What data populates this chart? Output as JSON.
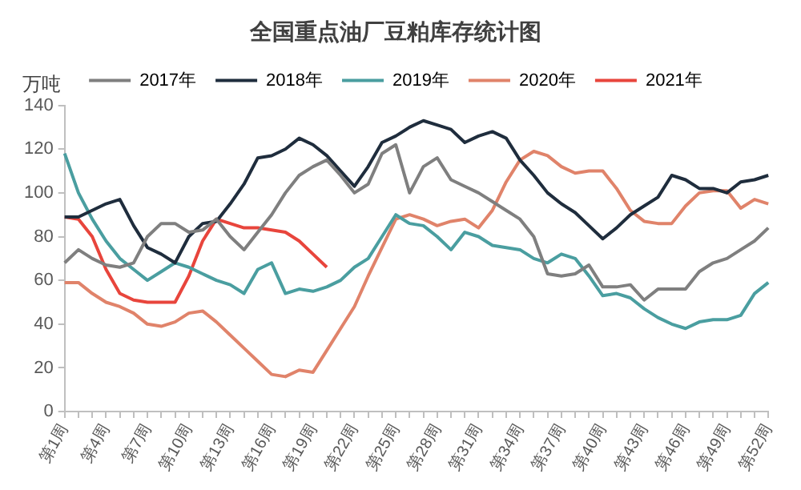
{
  "chart_data": {
    "type": "line",
    "title": "全国重点油厂豆粕库存统计图",
    "ylabel": "万吨",
    "categories": [
      "第1周",
      null,
      null,
      "第4周",
      null,
      null,
      "第7周",
      null,
      null,
      "第10周",
      null,
      null,
      "第13周",
      null,
      null,
      "第16周",
      null,
      null,
      "第19周",
      null,
      null,
      "第22周",
      null,
      null,
      "第25周",
      null,
      null,
      "第28周",
      null,
      null,
      "第31周",
      null,
      null,
      "第34周",
      null,
      null,
      "第37周",
      null,
      null,
      "第40周",
      null,
      null,
      "第43周",
      null,
      null,
      "第46周",
      null,
      null,
      "第49周",
      null,
      null,
      "第52周"
    ],
    "series": [
      {
        "name": "2017年",
        "color": "#7f7f7f",
        "values": [
          68,
          74,
          70,
          67,
          66,
          68,
          80,
          86,
          86,
          82,
          83,
          88,
          80,
          74,
          82,
          90,
          100,
          108,
          112,
          115,
          108,
          100,
          104,
          118,
          122,
          100,
          112,
          116,
          106,
          103,
          100,
          96,
          92,
          88,
          80,
          63,
          62,
          63,
          67,
          57,
          57,
          58,
          51,
          56,
          56,
          56,
          64,
          68,
          70,
          74,
          78,
          84
        ]
      },
      {
        "name": "2018年",
        "color": "#1f2d3d",
        "values": [
          89,
          89,
          92,
          95,
          97,
          85,
          75,
          72,
          68,
          80,
          86,
          87,
          95,
          104,
          116,
          117,
          120,
          125,
          122,
          117,
          110,
          103,
          112,
          123,
          126,
          130,
          133,
          131,
          129,
          123,
          126,
          128,
          125,
          115,
          108,
          100,
          95,
          91,
          85,
          79,
          84,
          90,
          94,
          98,
          108,
          106,
          102,
          102,
          100,
          105,
          106,
          108
        ]
      },
      {
        "name": "2019年",
        "color": "#4a9ea0",
        "values": [
          118,
          100,
          88,
          78,
          70,
          65,
          60,
          64,
          68,
          66,
          63,
          60,
          58,
          54,
          65,
          68,
          54,
          56,
          55,
          57,
          60,
          66,
          70,
          80,
          90,
          86,
          85,
          80,
          74,
          82,
          80,
          76,
          75,
          74,
          70,
          68,
          72,
          70,
          62,
          53,
          54,
          52,
          47,
          43,
          40,
          38,
          41,
          42,
          42,
          44,
          54,
          59
        ]
      },
      {
        "name": "2020年",
        "color": "#e0836a",
        "values": [
          59,
          59,
          54,
          50,
          48,
          45,
          40,
          39,
          41,
          45,
          46,
          41,
          35,
          29,
          23,
          17,
          16,
          19,
          18,
          28,
          38,
          48,
          62,
          75,
          88,
          90,
          88,
          85,
          87,
          88,
          84,
          92,
          105,
          115,
          119,
          117,
          112,
          109,
          110,
          110,
          102,
          92,
          87,
          86,
          86,
          94,
          100,
          101,
          101,
          93,
          97,
          95
        ]
      },
      {
        "name": "2021年",
        "color": "#e8453c",
        "values": [
          89,
          88,
          80,
          65,
          54,
          51,
          50,
          50,
          50,
          62,
          78,
          88,
          86,
          84,
          84,
          83,
          82,
          78,
          72,
          66,
          null,
          null,
          null,
          null,
          null,
          null,
          null,
          null,
          null,
          null,
          null,
          null,
          null,
          null,
          null,
          null,
          null,
          null,
          null,
          null,
          null,
          null,
          null,
          null,
          null,
          null,
          null,
          null,
          null,
          null,
          null,
          null
        ]
      }
    ],
    "ylim": [
      0,
      140
    ],
    "yticks": [
      0,
      20,
      40,
      60,
      80,
      100,
      120,
      140
    ],
    "grid": false,
    "legend": "top",
    "marker": "none",
    "line_style": "solid"
  }
}
